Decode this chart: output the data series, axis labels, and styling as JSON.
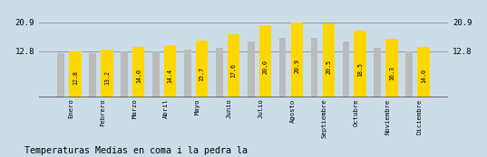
{
  "categories": [
    "Enero",
    "Febrero",
    "Marzo",
    "Abril",
    "Mayo",
    "Junio",
    "Julio",
    "Agosto",
    "Septiembre",
    "Octubre",
    "Noviembre",
    "Diciembre"
  ],
  "values": [
    12.8,
    13.2,
    14.0,
    14.4,
    15.7,
    17.6,
    20.0,
    20.9,
    20.5,
    18.5,
    16.3,
    14.0
  ],
  "gray_values": [
    12.2,
    12.2,
    12.8,
    12.8,
    13.2,
    13.8,
    15.5,
    16.5,
    16.5,
    15.5,
    13.8,
    12.8
  ],
  "bar_color_yellow": "#FFD700",
  "bar_color_gray": "#BBBBBB",
  "background_color": "#CCDDE8",
  "ylim_max": 24.0,
  "ytick_vals": [
    12.8,
    20.9
  ],
  "title": "Temperaturas Medias en coma i la pedra la",
  "title_fontsize": 7.2,
  "value_fontsize": 4.8,
  "tick_fontsize": 5.2,
  "yaxis_fontsize": 6.5,
  "gridline_color": "#999999",
  "yellow_bar_width": 0.38,
  "gray_bar_width": 0.22
}
